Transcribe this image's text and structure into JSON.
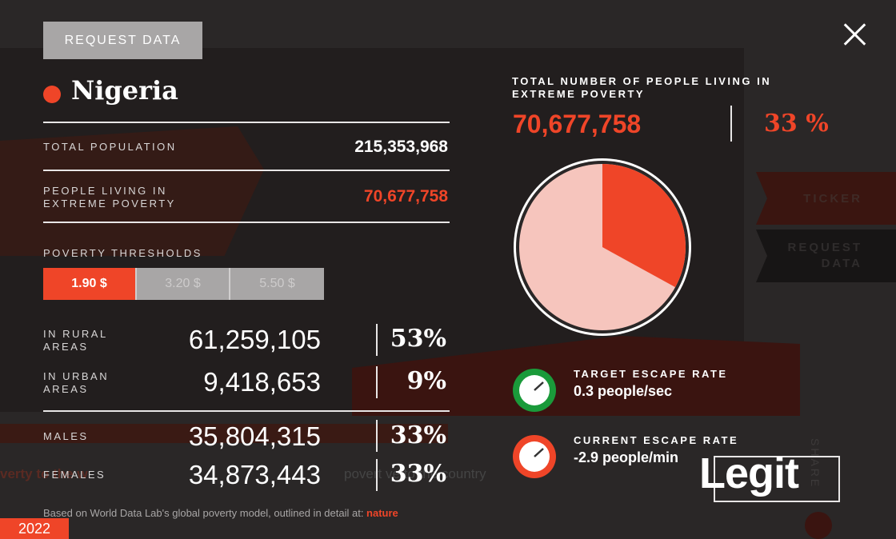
{
  "header": {
    "request_data_label": "REQUEST DATA"
  },
  "country": {
    "name": "Nigeria",
    "dot_color": "#ef4528"
  },
  "summary": {
    "total_population_label": "TOTAL POPULATION",
    "total_population_value": "215,353,968",
    "extreme_poverty_label_line1": "PEOPLE LIVING IN",
    "extreme_poverty_label_line2": "EXTREME POVERTY",
    "extreme_poverty_value": "70,677,758"
  },
  "thresholds": {
    "label": "POVERTY THRESHOLDS",
    "options": [
      "1.90 $",
      "3.20 $",
      "5.50 $"
    ],
    "selected": "1.90 $"
  },
  "breakdown": [
    {
      "label_line1": "IN RURAL",
      "label_line2": "AREAS",
      "value": "61,259,105",
      "pct": "53%"
    },
    {
      "label_line1": "IN URBAN",
      "label_line2": "AREAS",
      "value": "9,418,653",
      "pct": "9%"
    },
    {
      "label_line1": "MALES",
      "label_line2": "",
      "value": "35,804,315",
      "pct": "33%"
    },
    {
      "label_line1": "FEMALES",
      "label_line2": "",
      "value": "34,873,443",
      "pct": "33%"
    }
  ],
  "totals_panel": {
    "title": "TOTAL NUMBER OF PEOPLE LIVING IN EXTREME POVERTY",
    "value": "70,677,758",
    "pct": "33 %",
    "pie_fraction": 0.33
  },
  "rates": {
    "target_label": "TARGET ESCAPE RATE",
    "target_value": "0.3 people/sec",
    "target_color": "#1a9a3a",
    "current_label": "CURRENT ESCAPE RATE",
    "current_value": "-2.9 people/min",
    "current_color": "#ef4528"
  },
  "side_tabs": {
    "ticker": "TICKER",
    "request_line1": "REQUEST",
    "request_line2": "DATA"
  },
  "share_label": "SHARE",
  "background_text": {
    "left": "verty to the w",
    "middle": "povert   ve to the country"
  },
  "footnote": {
    "text": "Based on World Data Lab's global poverty model, outlined in detail at: ",
    "link": "nature"
  },
  "year": "2022",
  "watermark": "Legit",
  "colors": {
    "accent": "#ef4528",
    "pie_rest": "#f6c5bd",
    "background": "#2a2727"
  }
}
